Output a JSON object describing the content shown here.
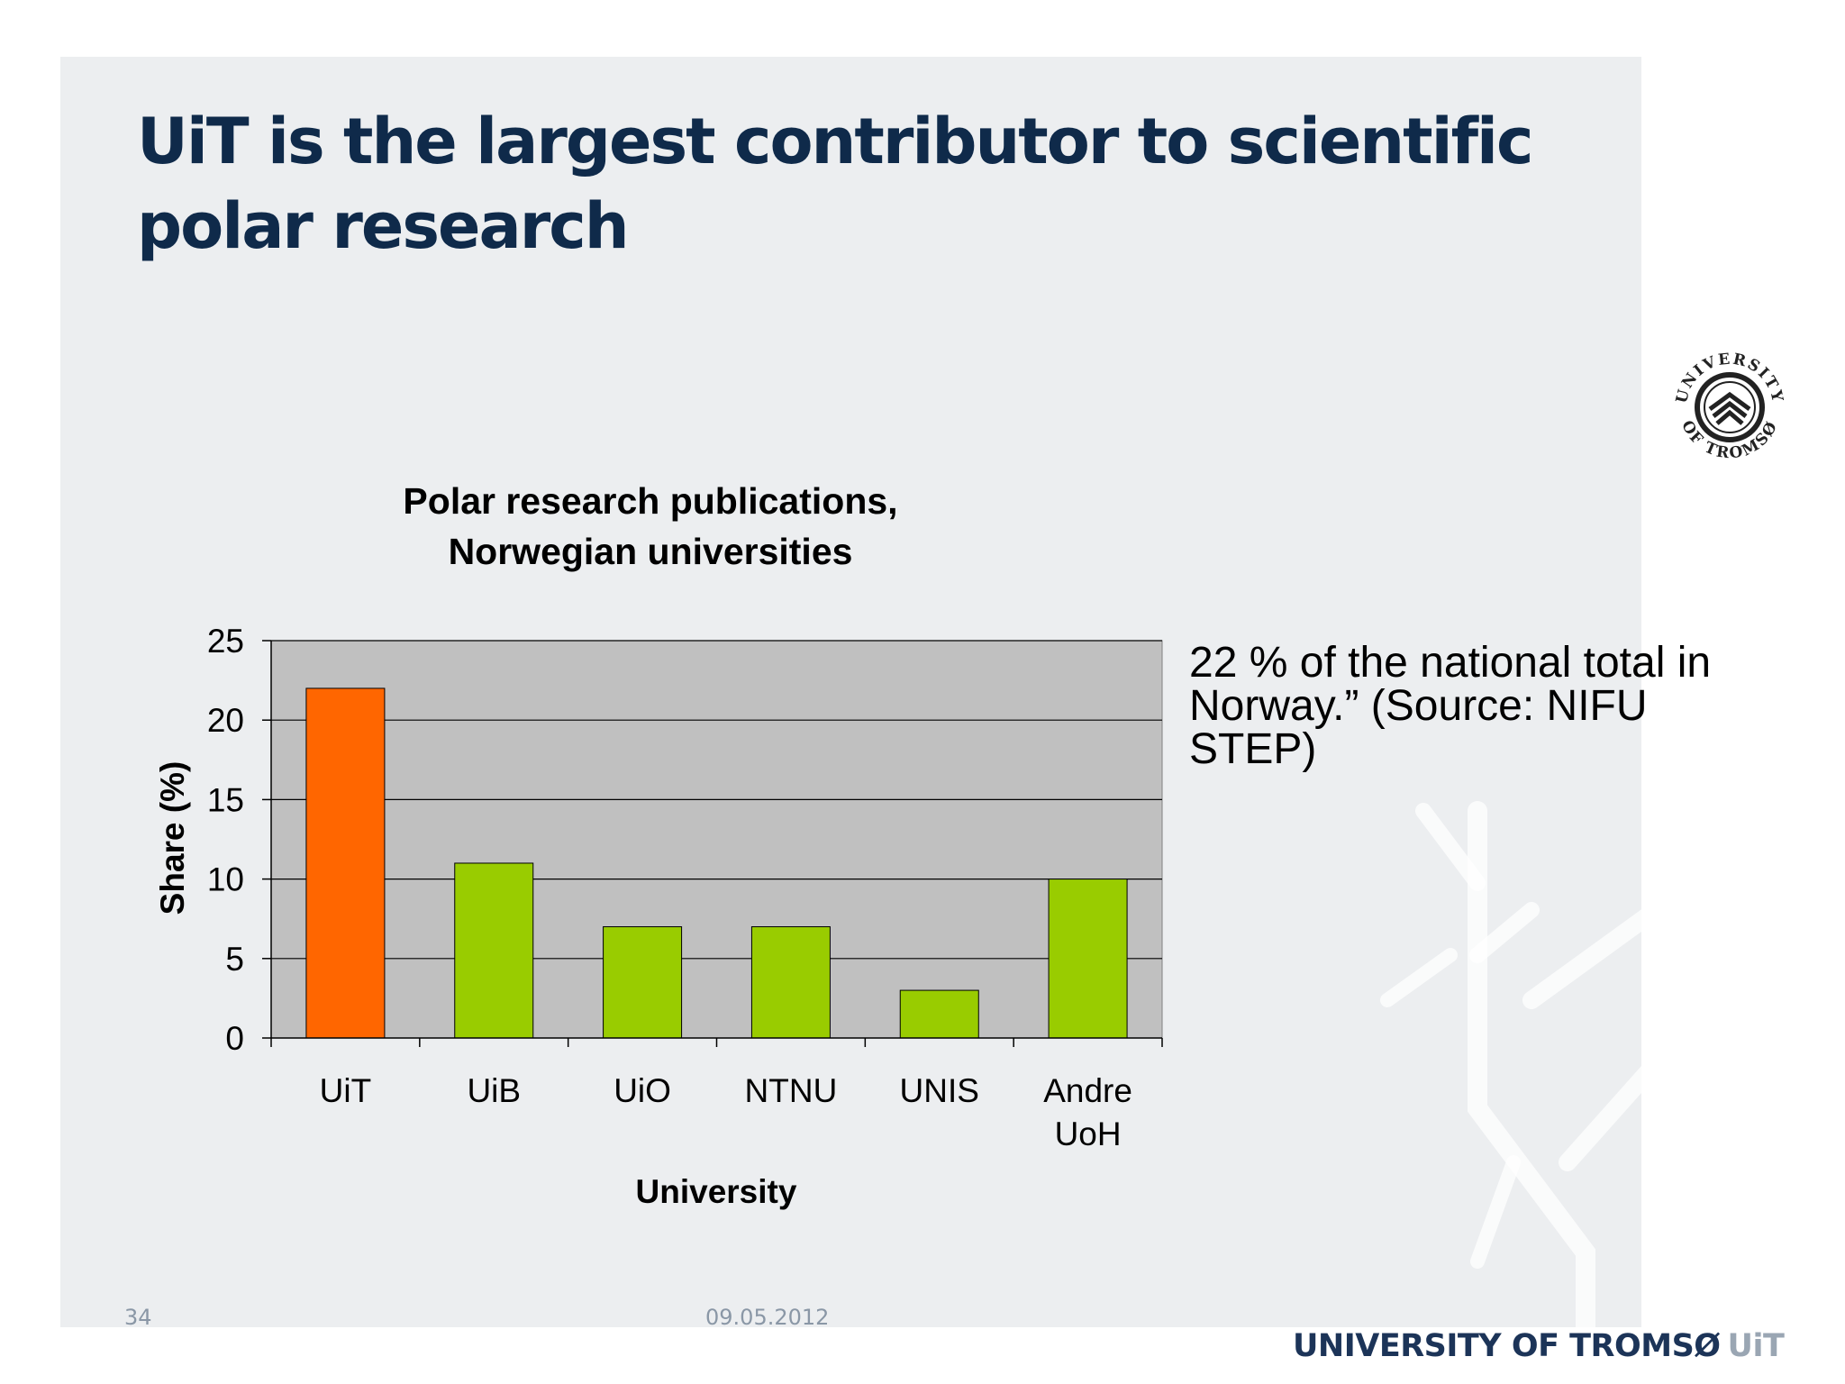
{
  "slide": {
    "title": "UiT is the largest contributor to scientific polar research",
    "callout": "22 % of the national total in Norway.” (Source: NIFU STEP)",
    "footer": {
      "page_number": "34",
      "date": "09.05.2012"
    },
    "brand": {
      "name": "UNIVERSITY OF TROMSØ",
      "abbr": "UiT"
    },
    "seal": {
      "top_text": "UNIVERSITY",
      "bottom_text": "OF TROMSØ"
    }
  },
  "colors": {
    "title": "#0f2a4a",
    "plot_background": "#c0c0c0",
    "highlight_bar": "#ff6600",
    "bar": "#99cc00"
  },
  "chart_data": {
    "type": "bar",
    "title": "Polar research publications, Norwegian universities",
    "title_lines": [
      "Polar research publications,",
      "Norwegian universities"
    ],
    "xlabel": "University",
    "ylabel": "Share (%)",
    "categories": [
      "UiT",
      "UiB",
      "UiO",
      "NTNU",
      "UNIS",
      "Andre UoH"
    ],
    "category_lines": [
      [
        "UiT"
      ],
      [
        "UiB"
      ],
      [
        "UiO"
      ],
      [
        "NTNU"
      ],
      [
        "UNIS"
      ],
      [
        "Andre",
        "UoH"
      ]
    ],
    "values": [
      22,
      11,
      7,
      7,
      3,
      10
    ],
    "highlight_index": 0,
    "ylim": [
      0,
      25
    ],
    "yticks": [
      0,
      5,
      10,
      15,
      20,
      25
    ],
    "grid": true,
    "legend": false
  }
}
